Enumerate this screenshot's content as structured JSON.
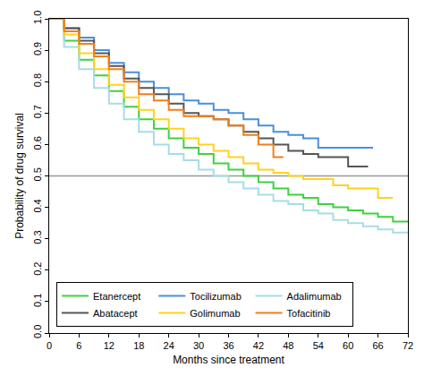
{
  "chart_data": {
    "type": "line",
    "x_label": "Months since treatment",
    "y_label": "Probability of drug survival",
    "xlim": [
      0,
      72
    ],
    "xticks": [
      0,
      6,
      12,
      18,
      24,
      30,
      36,
      42,
      48,
      54,
      60,
      66,
      72
    ],
    "ylim": [
      0,
      1
    ],
    "yticks": [
      {
        "value": 0,
        "label": "0.0"
      },
      0.1,
      0.2,
      0.3,
      0.4,
      0.5,
      0.6,
      0.7,
      0.8,
      0.9,
      {
        "value": 1,
        "label": "1.0"
      }
    ],
    "grid": false,
    "legend": "bottom left",
    "line_style": "step",
    "reference_lines": [
      {
        "y": 0.5,
        "color": "#999999"
      }
    ],
    "series": [
      {
        "name": "Etanercept",
        "color": "#3ed23e",
        "x": [
          0,
          3,
          6,
          9,
          12,
          15,
          18,
          21,
          24,
          27,
          30,
          33,
          36,
          39,
          42,
          45,
          48,
          51,
          54,
          57,
          60,
          63,
          66,
          69,
          72
        ],
        "values": [
          1,
          0.93,
          0.87,
          0.82,
          0.77,
          0.72,
          0.68,
          0.65,
          0.62,
          0.59,
          0.57,
          0.54,
          0.52,
          0.5,
          0.48,
          0.46,
          0.44,
          0.43,
          0.41,
          0.4,
          0.39,
          0.38,
          0.37,
          0.355,
          0.355
        ]
      },
      {
        "name": "Tocilizumab",
        "color": "#4a8fdc",
        "x": [
          0,
          3,
          6,
          9,
          12,
          15,
          18,
          21,
          24,
          27,
          30,
          33,
          36,
          39,
          42,
          45,
          48,
          51,
          54,
          57,
          60,
          63,
          65
        ],
        "values": [
          1,
          0.97,
          0.94,
          0.9,
          0.86,
          0.83,
          0.8,
          0.78,
          0.76,
          0.74,
          0.73,
          0.71,
          0.7,
          0.68,
          0.66,
          0.64,
          0.63,
          0.62,
          0.59,
          0.59,
          0.59,
          0.59,
          0.59
        ]
      },
      {
        "name": "Adalimumab",
        "color": "#a6dde6",
        "x": [
          0,
          3,
          6,
          9,
          12,
          15,
          18,
          21,
          24,
          27,
          30,
          33,
          36,
          39,
          42,
          45,
          48,
          51,
          54,
          57,
          60,
          63,
          66,
          69,
          72
        ],
        "values": [
          1,
          0.91,
          0.84,
          0.78,
          0.73,
          0.68,
          0.64,
          0.6,
          0.57,
          0.55,
          0.52,
          0.5,
          0.48,
          0.46,
          0.44,
          0.42,
          0.41,
          0.39,
          0.38,
          0.36,
          0.35,
          0.34,
          0.33,
          0.32,
          0.32
        ]
      },
      {
        "name": "Abatacept",
        "color": "#555555",
        "x": [
          0,
          3,
          6,
          9,
          12,
          15,
          18,
          21,
          24,
          27,
          30,
          33,
          36,
          39,
          42,
          45,
          48,
          51,
          54,
          57,
          59,
          60,
          63,
          64
        ],
        "values": [
          1,
          0.97,
          0.93,
          0.89,
          0.85,
          0.81,
          0.78,
          0.76,
          0.73,
          0.7,
          0.69,
          0.68,
          0.66,
          0.64,
          0.62,
          0.6,
          0.58,
          0.57,
          0.56,
          0.56,
          0.56,
          0.53,
          0.53,
          0.53
        ]
      },
      {
        "name": "Golimumab",
        "color": "#ffd21f",
        "x": [
          0,
          3,
          6,
          9,
          12,
          15,
          18,
          21,
          24,
          27,
          30,
          33,
          36,
          39,
          42,
          45,
          48,
          51,
          54,
          57,
          60,
          63,
          66,
          69
        ],
        "values": [
          1,
          0.95,
          0.89,
          0.84,
          0.79,
          0.75,
          0.71,
          0.68,
          0.65,
          0.62,
          0.6,
          0.58,
          0.56,
          0.54,
          0.52,
          0.51,
          0.5,
          0.49,
          0.49,
          0.47,
          0.46,
          0.46,
          0.43,
          0.43
        ]
      },
      {
        "name": "Tofacitinib",
        "color": "#f07f1a",
        "x": [
          0,
          3,
          6,
          9,
          12,
          15,
          18,
          21,
          24,
          27,
          30,
          33,
          36,
          39,
          42,
          45,
          47
        ],
        "values": [
          1,
          0.96,
          0.92,
          0.88,
          0.84,
          0.8,
          0.76,
          0.74,
          0.71,
          0.69,
          0.69,
          0.68,
          0.66,
          0.63,
          0.6,
          0.56,
          0.56
        ]
      }
    ]
  }
}
